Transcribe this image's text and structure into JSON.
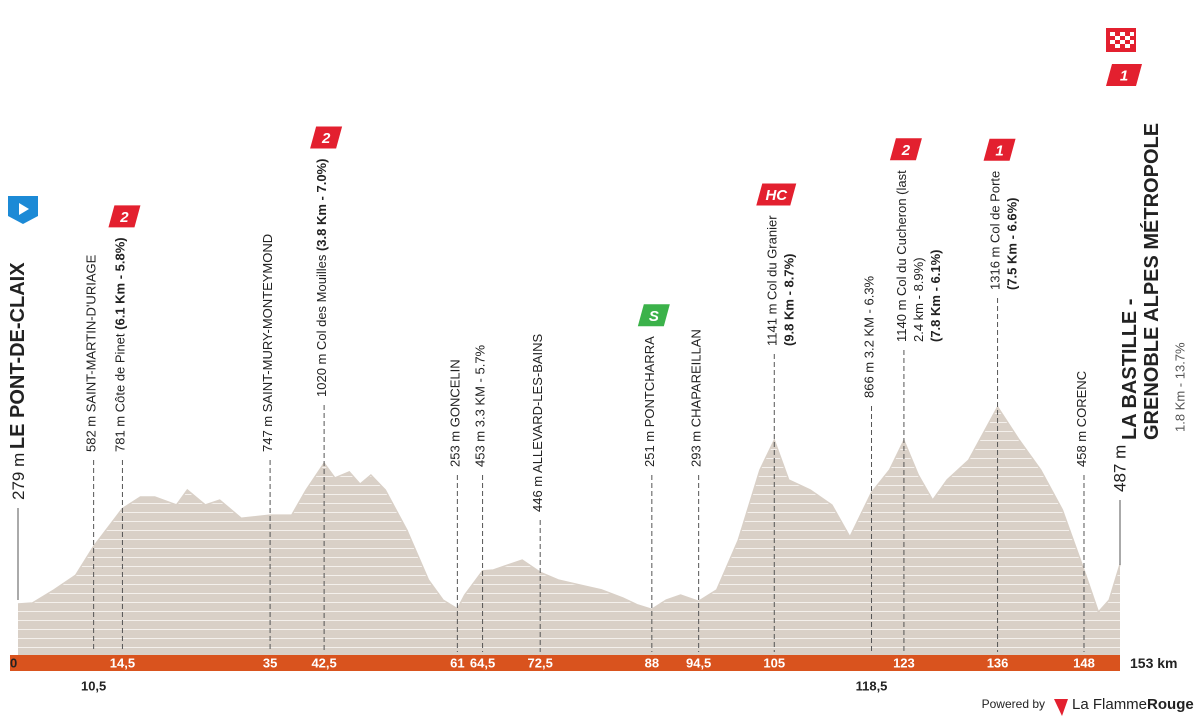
{
  "chart_data": {
    "type": "area",
    "xlim": [
      0,
      153
    ],
    "ylim": [
      0,
      1400
    ],
    "fill_color": "#d9d0c7",
    "bar_color": "#d9531e",
    "start": {
      "km": 0,
      "altitude": "279 m",
      "name": "LE PONT-DE-CLAIX"
    },
    "finish": {
      "km": 153,
      "altitude": "487 m",
      "name": [
        "LA BASTILLE -",
        "GRENOBLE ALPES MÉTROPOLE"
      ],
      "climb": "1.8 Km - 13.7%",
      "category": "1",
      "badge_color": "#e3202f"
    },
    "xticks": [
      0,
      {
        "value": 10.5,
        "label": "10,5"
      },
      {
        "value": 14.5,
        "label": "14,5"
      },
      35,
      {
        "value": 42.5,
        "label": "42,5"
      },
      61,
      {
        "value": 64.5,
        "label": "64,5"
      },
      {
        "value": 72.5,
        "label": "72,5"
      },
      88,
      {
        "value": 94.5,
        "label": "94,5"
      },
      105,
      {
        "value": 118.5,
        "label": "118,5"
      },
      123,
      136,
      148,
      {
        "value": 153,
        "label": "153 km"
      }
    ],
    "waypoints": [
      {
        "km": 10.5,
        "text": "582 m SAINT-MARTIN-D'URIAGE"
      },
      {
        "km": 14.5,
        "text": "781 m Côte de Pinet ",
        "climb": "(6.1 Km - 5.8%)",
        "category": "2",
        "badge_color": "#e3202f"
      },
      {
        "km": 35,
        "text": "747 m SAINT-MURY-MONTEYMOND"
      },
      {
        "km": 42.5,
        "text": "1020 m Col des Mouilles ",
        "climb": "(3.8 Km - 7.0%)",
        "category": "2",
        "badge_color": "#e3202f"
      },
      {
        "km": 61,
        "text": "253 m GONCELIN"
      },
      {
        "km": 64.5,
        "text": "453 m 3.3 KM - 5.7%"
      },
      {
        "km": 72.5,
        "text": "446 m ALLEVARD-LES-BAINS"
      },
      {
        "km": 88,
        "text": "251 m PONTCHARRA",
        "category": "S",
        "badge_color": "#3bb24a"
      },
      {
        "km": 94.5,
        "text": "293 m CHAPAREILLAN"
      },
      {
        "km": 105,
        "text": "1141 m Col du Granier",
        "climb": "(9.8 Km - 8.7%)",
        "category": "HC",
        "badge_color": "#e3202f"
      },
      {
        "km": 118.5,
        "text": "866 m 3.2 KM - 6.3%"
      },
      {
        "km": 123,
        "text": "1140 m Col du Cucheron (last",
        "note": "2.4 km - 8.9%)",
        "climb": "(7.8 Km - 6.1%)",
        "category": "2",
        "badge_color": "#e3202f"
      },
      {
        "km": 136,
        "text": "1316 m Col de Porte",
        "climb": "(7.5 Km - 6.6%)",
        "category": "1",
        "badge_color": "#e3202f"
      },
      {
        "km": 148,
        "text": "458 m CORENC"
      }
    ],
    "profile": {
      "km": [
        0,
        2,
        5,
        8,
        10.5,
        14.5,
        17,
        19,
        22,
        23.5,
        26,
        28,
        31,
        35,
        38,
        40,
        42.5,
        44,
        46,
        47.5,
        49,
        51,
        54,
        57,
        59,
        61,
        62,
        64.5,
        66,
        68,
        70,
        72.5,
        75,
        78,
        81,
        84,
        86,
        88,
        90,
        92,
        94.5,
        97,
        100,
        103,
        105,
        107,
        110,
        113,
        115.5,
        118.5,
        121,
        123,
        125,
        127,
        129,
        132,
        136,
        139,
        142,
        145,
        148,
        150,
        151.5,
        153
      ],
      "elevation": [
        279,
        284,
        353,
        430,
        582,
        781,
        842,
        842,
        800,
        879,
        800,
        826,
        730,
        747,
        747,
        879,
        1020,
        942,
        974,
        910,
        958,
        879,
        668,
        405,
        300,
        253,
        326,
        453,
        458,
        484,
        510,
        446,
        405,
        379,
        353,
        310,
        274,
        251,
        300,
        326,
        293,
        353,
        616,
        984,
        1141,
        932,
        879,
        800,
        632,
        866,
        984,
        1140,
        958,
        826,
        932,
        1037,
        1316,
        1142,
        984,
        774,
        458,
        237,
        300,
        487
      ]
    }
  },
  "footer": {
    "powered_by": "Powered by",
    "brand": "La Flamme",
    "brand_bold": "Rouge"
  }
}
